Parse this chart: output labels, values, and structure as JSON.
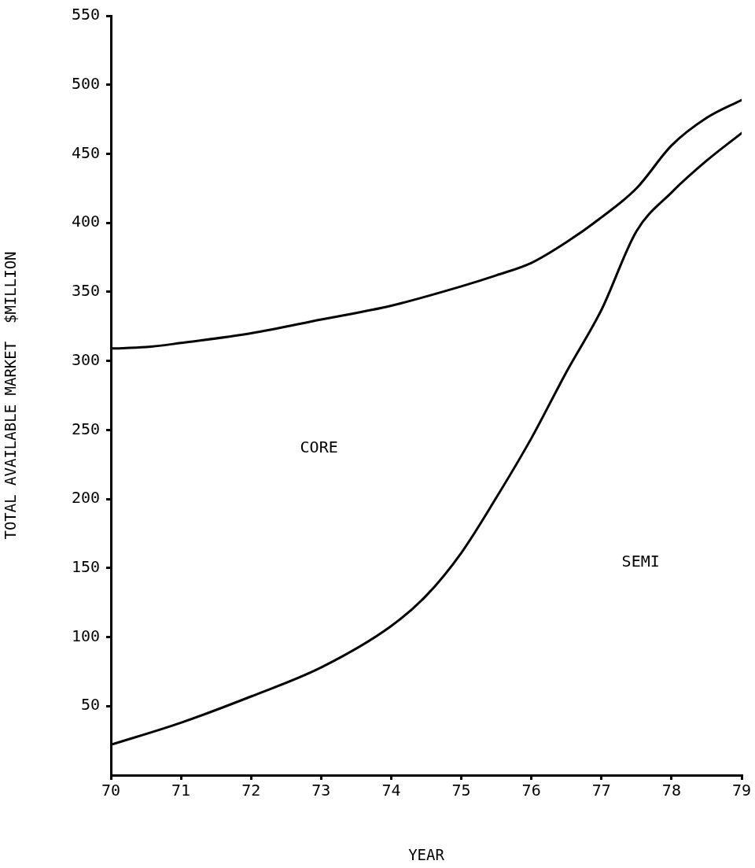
{
  "chart_data": {
    "type": "line",
    "xlabel": "YEAR",
    "ylabel": "TOTAL AVAILABLE MARKET  $MILLION",
    "xlim": [
      70,
      79
    ],
    "xticks": [
      70,
      71,
      72,
      73,
      74,
      75,
      76,
      77,
      78,
      79
    ],
    "ylim": [
      0,
      550
    ],
    "yticks": [
      50,
      100,
      150,
      200,
      250,
      300,
      350,
      400,
      450,
      500,
      550
    ],
    "grid": false,
    "legend": false,
    "marker": "none",
    "line_style": "solid",
    "annotations": [
      "CORE",
      "SEMI"
    ],
    "series": [
      {
        "color": "#000000",
        "x": [
          70,
          70.5,
          71,
          72,
          73,
          74,
          75,
          75.5,
          76,
          76.5,
          77,
          77.5,
          78,
          78.5,
          79
        ],
        "values": [
          309,
          310,
          313,
          320,
          330,
          340,
          354,
          362,
          371,
          386,
          404,
          425,
          456,
          476,
          489
        ]
      },
      {
        "color": "#000000",
        "x": [
          70,
          71,
          72,
          73,
          74,
          74.5,
          75,
          75.5,
          76,
          76.5,
          77,
          77.5,
          78,
          78.5,
          79
        ],
        "values": [
          22,
          38,
          57,
          78,
          108,
          130,
          161,
          201,
          244,
          292,
          337,
          394,
          422,
          445,
          465
        ]
      }
    ]
  }
}
